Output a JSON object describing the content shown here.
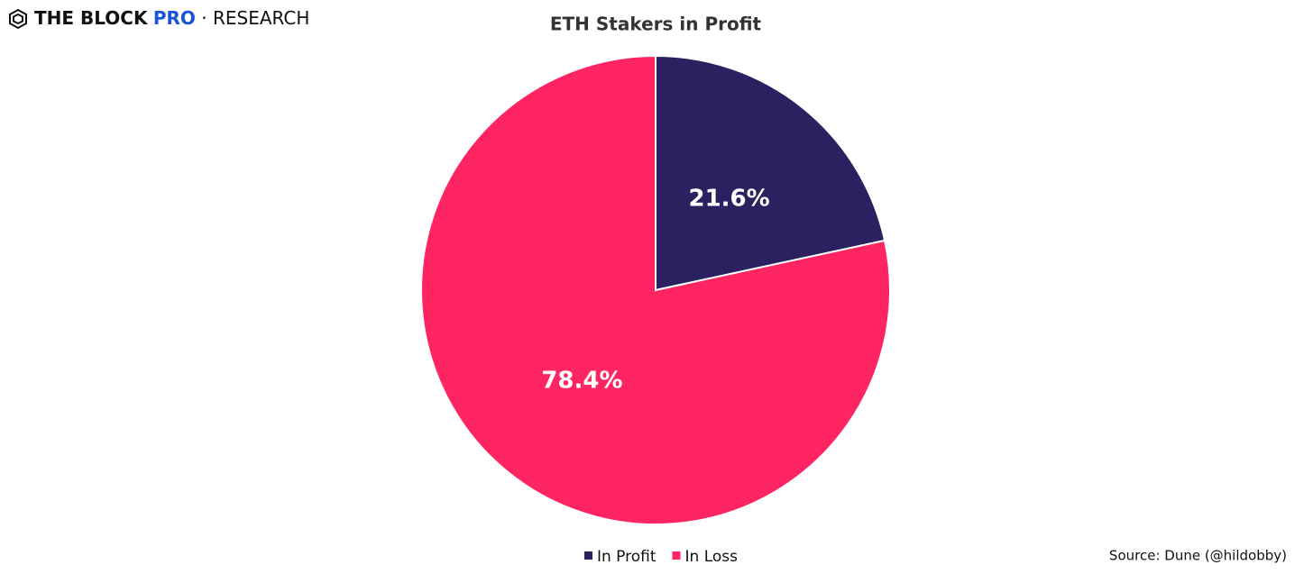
{
  "header": {
    "brand": "THE BLOCK",
    "tier": "PRO",
    "separator": "·",
    "section": "RESEARCH"
  },
  "chart_data": {
    "type": "pie",
    "title": "ETH Stakers in Profit",
    "categories": [
      "In Profit",
      "In Loss"
    ],
    "values": [
      21.6,
      78.4
    ],
    "value_labels": [
      "21.6%",
      "78.4%"
    ],
    "colors": [
      "#2b2160",
      "#ff2562"
    ],
    "legend": "bottom",
    "source": "Source: Dune (@hildobby)"
  }
}
